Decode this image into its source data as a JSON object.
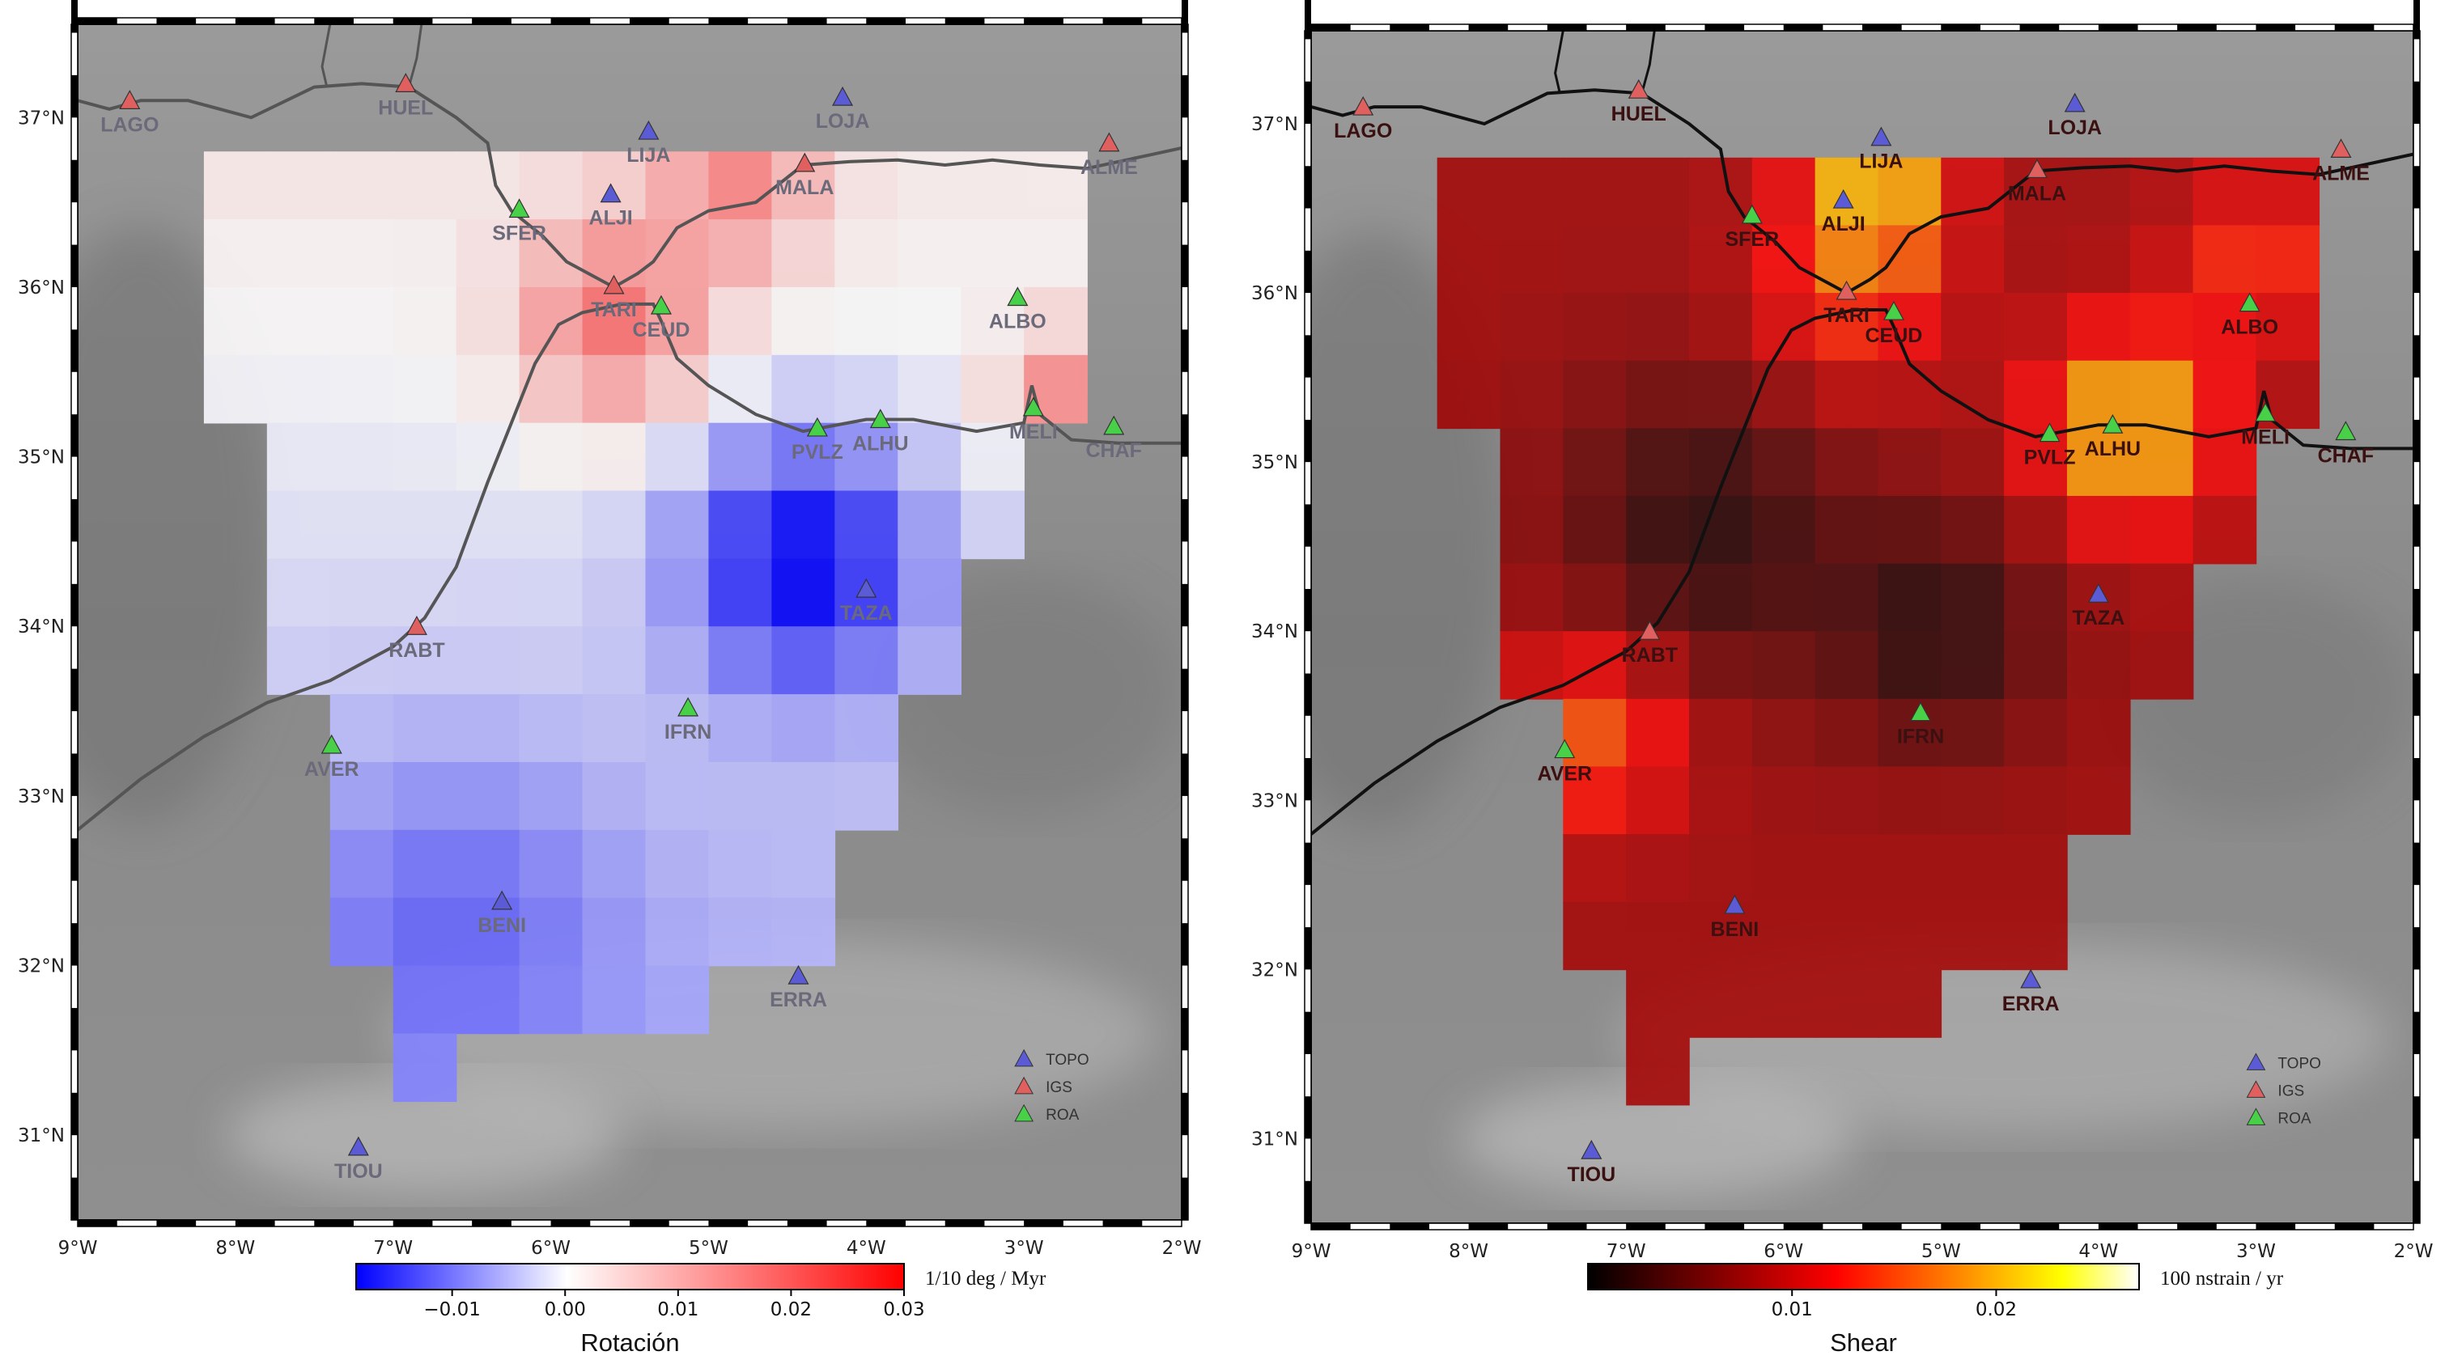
{
  "legend": {
    "items": [
      {
        "label": "TOPO",
        "color": "#5b5bd6"
      },
      {
        "label": "IGS",
        "color": "#e06060"
      },
      {
        "label": "ROA",
        "color": "#49d049"
      }
    ]
  },
  "axes": {
    "lon_ticks": [
      "9°W",
      "8°W",
      "7°W",
      "6°W",
      "5°W",
      "4°W",
      "3°W",
      "2°W"
    ],
    "lat_ticks": [
      "37°N",
      "36°N",
      "35°N",
      "34°N",
      "33°N",
      "32°N",
      "31°N"
    ]
  },
  "stations": [
    {
      "name": "LAGO",
      "net": "IGS",
      "lon": -8.67,
      "lat": 37.1
    },
    {
      "name": "HUEL",
      "net": "IGS",
      "lon": -6.92,
      "lat": 37.2
    },
    {
      "name": "LIJA",
      "net": "TOPO",
      "lon": -5.38,
      "lat": 36.92
    },
    {
      "name": "LOJA",
      "net": "TOPO",
      "lon": -4.15,
      "lat": 37.12
    },
    {
      "name": "ALME",
      "net": "IGS",
      "lon": -2.46,
      "lat": 36.85
    },
    {
      "name": "MALA",
      "net": "IGS",
      "lon": -4.39,
      "lat": 36.73
    },
    {
      "name": "ALJI",
      "net": "TOPO",
      "lon": -5.62,
      "lat": 36.55
    },
    {
      "name": "SFER",
      "net": "ROA",
      "lon": -6.2,
      "lat": 36.46
    },
    {
      "name": "TARI",
      "net": "IGS",
      "lon": -5.6,
      "lat": 36.01
    },
    {
      "name": "CEUD",
      "net": "ROA",
      "lon": -5.3,
      "lat": 35.89
    },
    {
      "name": "ALBO",
      "net": "ROA",
      "lon": -3.04,
      "lat": 35.94
    },
    {
      "name": "PVLZ",
      "net": "ROA",
      "lon": -4.31,
      "lat": 35.17
    },
    {
      "name": "ALHU",
      "net": "ROA",
      "lon": -3.91,
      "lat": 35.22
    },
    {
      "name": "MELI",
      "net": "ROA",
      "lon": -2.94,
      "lat": 35.29
    },
    {
      "name": "CHAF",
      "net": "ROA",
      "lon": -2.43,
      "lat": 35.18
    },
    {
      "name": "TAZA",
      "net": "TOPO",
      "lon": -4.0,
      "lat": 34.22
    },
    {
      "name": "RABT",
      "net": "IGS",
      "lon": -6.85,
      "lat": 34.0
    },
    {
      "name": "IFRN",
      "net": "ROA",
      "lon": -5.13,
      "lat": 33.52
    },
    {
      "name": "AVER",
      "net": "ROA",
      "lon": -7.39,
      "lat": 33.3
    },
    {
      "name": "BENI",
      "net": "TOPO",
      "lon": -6.31,
      "lat": 32.38
    },
    {
      "name": "ERRA",
      "net": "TOPO",
      "lon": -4.43,
      "lat": 31.94
    },
    {
      "name": "TIOU",
      "net": "TOPO",
      "lon": -7.22,
      "lat": 30.93
    }
  ],
  "left_panel": {
    "colorbar": {
      "title": "Rotación",
      "unit": "1/10 deg / Myr",
      "ticks": [
        "−0.01",
        "0.00",
        "0.01",
        "0.02",
        "0.03"
      ],
      "tick_values": [
        -0.01,
        0.0,
        0.01,
        0.02,
        0.03
      ],
      "range": [
        -0.0185,
        0.03
      ],
      "colors": [
        "#0000ff",
        "#ffffff",
        "#ff0000"
      ]
    }
  },
  "right_panel": {
    "colorbar": {
      "title": "Shear",
      "unit": "100 nstrain / yr",
      "ticks": [
        "0.01",
        "0.02"
      ],
      "tick_values": [
        0.01,
        0.02
      ],
      "range": [
        0.0,
        0.027
      ],
      "colors": [
        "#000000",
        "#7a0000",
        "#ff0000",
        "#ff8c00",
        "#ffff00",
        "#ffffff"
      ]
    }
  }
}
